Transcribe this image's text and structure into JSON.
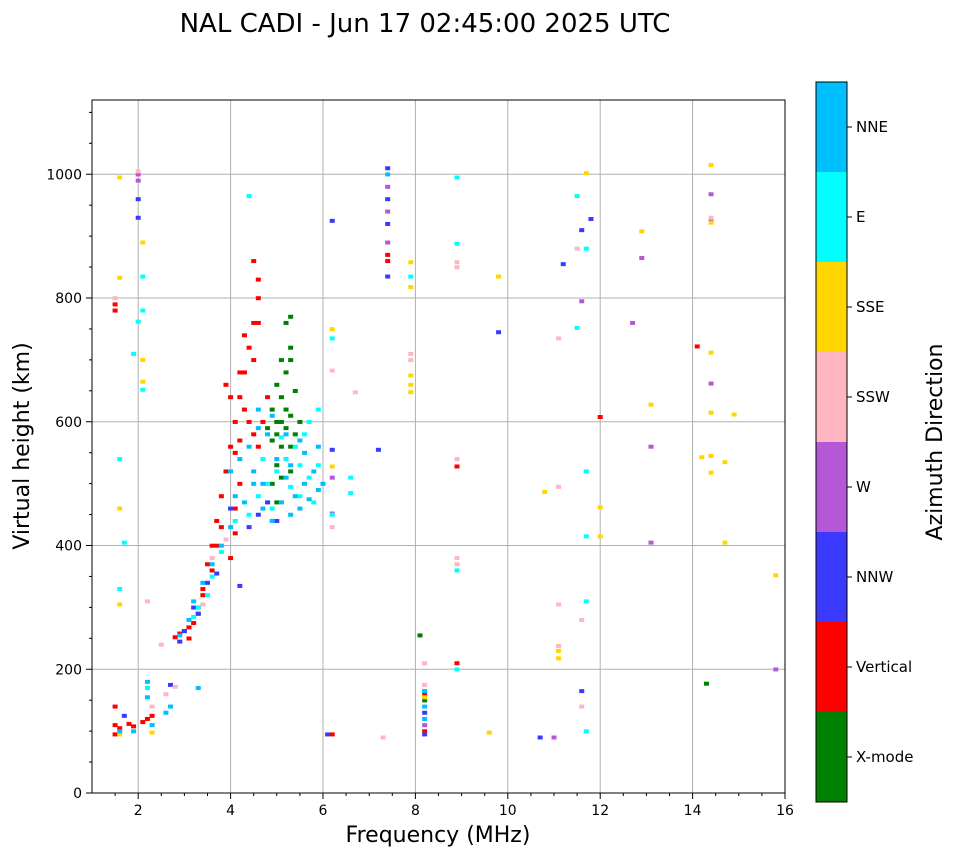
{
  "chart_data": {
    "type": "scatter",
    "title": "NAL CADI - Jun 17 02:45:00 2025 UTC",
    "xlabel": "Frequency (MHz)",
    "ylabel": "Virtual height (km)",
    "xlim": [
      1,
      16
    ],
    "ylim": [
      0,
      1120
    ],
    "xticks": [
      2,
      4,
      6,
      8,
      10,
      12,
      14,
      16
    ],
    "xtick_labels": [
      "2",
      "4",
      "6",
      "8",
      "10",
      "12",
      "14",
      "16"
    ],
    "yticks": [
      0,
      200,
      400,
      600,
      800,
      1000
    ],
    "ytick_labels": [
      "0",
      "200",
      "400",
      "600",
      "800",
      "1000"
    ],
    "grid": true,
    "colorbar": {
      "label": "Azimuth Direction",
      "categories": [
        "X-mode",
        "Vertical",
        "NNW",
        "W",
        "SSW",
        "SSE",
        "E",
        "NNE"
      ],
      "colors": [
        "#008000",
        "#ff0000",
        "#3a3aff",
        "#b658d6",
        "#ffb6c1",
        "#ffd700",
        "#00ffff",
        "#00bfff"
      ]
    },
    "series": [
      {
        "name": "X-mode",
        "points": [
          [
            4.9,
            570
          ],
          [
            5.0,
            600
          ],
          [
            5.1,
            640
          ],
          [
            5.2,
            680
          ],
          [
            5.3,
            720
          ],
          [
            5.0,
            530
          ],
          [
            5.1,
            560
          ],
          [
            5.2,
            590
          ],
          [
            5.3,
            610
          ],
          [
            5.4,
            650
          ],
          [
            5.2,
            760
          ],
          [
            5.3,
            700
          ],
          [
            4.9,
            500
          ],
          [
            5.0,
            470
          ],
          [
            5.1,
            510
          ],
          [
            5.2,
            540
          ],
          [
            4.8,
            590
          ],
          [
            5.0,
            660
          ],
          [
            5.1,
            700
          ],
          [
            5.3,
            770
          ],
          [
            5.4,
            580
          ],
          [
            5.5,
            600
          ],
          [
            5.2,
            620
          ],
          [
            5.1,
            600
          ],
          [
            5.0,
            580
          ],
          [
            4.9,
            620
          ],
          [
            5.3,
            560
          ],
          [
            5.3,
            520
          ],
          [
            8.1,
            255
          ],
          [
            8.2,
            150
          ],
          [
            14.3,
            177
          ]
        ]
      },
      {
        "name": "Vertical",
        "points": [
          [
            1.5,
            140
          ],
          [
            1.5,
            110
          ],
          [
            1.5,
            95
          ],
          [
            1.5,
            790
          ],
          [
            1.5,
            780
          ],
          [
            1.6,
            105
          ],
          [
            1.8,
            112
          ],
          [
            1.9,
            108
          ],
          [
            2.1,
            115
          ],
          [
            2.2,
            120
          ],
          [
            2.3,
            125
          ],
          [
            2.8,
            252
          ],
          [
            2.9,
            258
          ],
          [
            3.0,
            262
          ],
          [
            3.1,
            268
          ],
          [
            3.2,
            275
          ],
          [
            3.3,
            300
          ],
          [
            3.4,
            330
          ],
          [
            3.5,
            370
          ],
          [
            3.6,
            400
          ],
          [
            3.7,
            440
          ],
          [
            3.8,
            480
          ],
          [
            3.9,
            520
          ],
          [
            4.0,
            560
          ],
          [
            4.1,
            600
          ],
          [
            4.2,
            640
          ],
          [
            4.3,
            680
          ],
          [
            4.4,
            720
          ],
          [
            4.5,
            760
          ],
          [
            4.6,
            800
          ],
          [
            4.5,
            860
          ],
          [
            4.6,
            830
          ],
          [
            3.9,
            660
          ],
          [
            4.0,
            640
          ],
          [
            4.3,
            620
          ],
          [
            4.4,
            600
          ],
          [
            4.5,
            580
          ],
          [
            4.6,
            560
          ],
          [
            4.7,
            600
          ],
          [
            4.8,
            640
          ],
          [
            4.1,
            550
          ],
          [
            4.2,
            570
          ],
          [
            3.7,
            400
          ],
          [
            3.8,
            430
          ],
          [
            3.6,
            360
          ],
          [
            3.4,
            320
          ],
          [
            3.3,
            290
          ],
          [
            3.1,
            250
          ],
          [
            4.0,
            380
          ],
          [
            4.1,
            420
          ],
          [
            4.5,
            700
          ],
          [
            4.6,
            760
          ],
          [
            4.3,
            740
          ],
          [
            4.2,
            680
          ],
          [
            7.4,
            870
          ],
          [
            7.4,
            860
          ],
          [
            8.2,
            160
          ],
          [
            8.2,
            100
          ],
          [
            8.9,
            210
          ],
          [
            8.9,
            528
          ],
          [
            12.0,
            608
          ],
          [
            14.1,
            722
          ],
          [
            6.2,
            95
          ],
          [
            4.1,
            460
          ],
          [
            4.2,
            500
          ]
        ]
      },
      {
        "name": "NNW",
        "points": [
          [
            1.7,
            125
          ],
          [
            2.0,
            960
          ],
          [
            2.0,
            930
          ],
          [
            2.7,
            175
          ],
          [
            2.9,
            245
          ],
          [
            3.0,
            262
          ],
          [
            3.2,
            300
          ],
          [
            3.3,
            290
          ],
          [
            3.5,
            340
          ],
          [
            3.7,
            355
          ],
          [
            4.0,
            460
          ],
          [
            4.2,
            335
          ],
          [
            4.4,
            430
          ],
          [
            4.6,
            450
          ],
          [
            4.8,
            470
          ],
          [
            5.0,
            440
          ],
          [
            6.2,
            925
          ],
          [
            6.1,
            95
          ],
          [
            7.4,
            1010
          ],
          [
            7.4,
            960
          ],
          [
            7.4,
            920
          ],
          [
            7.4,
            835
          ],
          [
            8.2,
            130
          ],
          [
            8.2,
            95
          ],
          [
            9.8,
            745
          ],
          [
            10.7,
            90
          ],
          [
            11.2,
            855
          ],
          [
            11.6,
            910
          ],
          [
            11.6,
            165
          ],
          [
            11.8,
            928
          ],
          [
            7.2,
            555
          ],
          [
            6.2,
            555
          ]
        ]
      },
      {
        "name": "W",
        "points": [
          [
            2.0,
            1000
          ],
          [
            2.0,
            990
          ],
          [
            7.4,
            980
          ],
          [
            7.4,
            940
          ],
          [
            7.4,
            890
          ],
          [
            8.2,
            110
          ],
          [
            11.0,
            90
          ],
          [
            11.6,
            795
          ],
          [
            12.7,
            760
          ],
          [
            12.9,
            865
          ],
          [
            13.1,
            560
          ],
          [
            13.1,
            405
          ],
          [
            14.4,
            925
          ],
          [
            14.4,
            968
          ],
          [
            14.4,
            662
          ],
          [
            15.8,
            200
          ],
          [
            6.2,
            510
          ],
          [
            6.2,
            452
          ]
        ]
      },
      {
        "name": "SSW",
        "points": [
          [
            1.5,
            800
          ],
          [
            2.0,
            1005
          ],
          [
            2.2,
            310
          ],
          [
            2.3,
            140
          ],
          [
            2.5,
            240
          ],
          [
            2.6,
            160
          ],
          [
            2.8,
            172
          ],
          [
            3.4,
            305
          ],
          [
            3.6,
            380
          ],
          [
            3.9,
            410
          ],
          [
            6.2,
            430
          ],
          [
            6.2,
            683
          ],
          [
            6.7,
            648
          ],
          [
            7.3,
            90
          ],
          [
            7.9,
            700
          ],
          [
            7.9,
            710
          ],
          [
            8.2,
            210
          ],
          [
            8.2,
            175
          ],
          [
            8.9,
            540
          ],
          [
            8.9,
            380
          ],
          [
            8.9,
            370
          ],
          [
            8.9,
            850
          ],
          [
            8.9,
            858
          ],
          [
            11.1,
            735
          ],
          [
            11.1,
            495
          ],
          [
            11.1,
            305
          ],
          [
            11.1,
            238
          ],
          [
            11.5,
            880
          ],
          [
            11.6,
            280
          ],
          [
            11.6,
            140
          ],
          [
            14.4,
            930
          ]
        ]
      },
      {
        "name": "SSE",
        "points": [
          [
            1.6,
            995
          ],
          [
            1.6,
            833
          ],
          [
            1.6,
            460
          ],
          [
            1.6,
            305
          ],
          [
            1.6,
            95
          ],
          [
            2.1,
            890
          ],
          [
            2.1,
            700
          ],
          [
            2.1,
            665
          ],
          [
            2.3,
            98
          ],
          [
            6.2,
            750
          ],
          [
            6.2,
            528
          ],
          [
            7.9,
            858
          ],
          [
            7.9,
            818
          ],
          [
            7.9,
            675
          ],
          [
            7.9,
            660
          ],
          [
            7.9,
            648
          ],
          [
            8.2,
            155
          ],
          [
            9.6,
            98
          ],
          [
            9.8,
            835
          ],
          [
            10.8,
            487
          ],
          [
            11.1,
            218
          ],
          [
            11.1,
            230
          ],
          [
            11.7,
            1002
          ],
          [
            12.0,
            462
          ],
          [
            12.0,
            415
          ],
          [
            12.9,
            908
          ],
          [
            13.1,
            628
          ],
          [
            14.2,
            543
          ],
          [
            14.4,
            712
          ],
          [
            14.4,
            615
          ],
          [
            14.4,
            545
          ],
          [
            14.4,
            518
          ],
          [
            14.4,
            922
          ],
          [
            14.4,
            1015
          ],
          [
            14.7,
            535
          ],
          [
            14.7,
            405
          ],
          [
            14.9,
            612
          ],
          [
            15.8,
            352
          ]
        ]
      },
      {
        "name": "E",
        "points": [
          [
            1.6,
            540
          ],
          [
            1.6,
            330
          ],
          [
            1.7,
            405
          ],
          [
            1.9,
            710
          ],
          [
            2.0,
            762
          ],
          [
            2.1,
            780
          ],
          [
            2.1,
            835
          ],
          [
            2.1,
            652
          ],
          [
            2.2,
            170
          ],
          [
            3.2,
            285
          ],
          [
            3.3,
            300
          ],
          [
            3.5,
            320
          ],
          [
            3.6,
            350
          ],
          [
            3.8,
            390
          ],
          [
            4.1,
            440
          ],
          [
            4.4,
            965
          ],
          [
            4.4,
            450
          ],
          [
            4.6,
            480
          ],
          [
            4.8,
            500
          ],
          [
            5.0,
            520
          ],
          [
            5.2,
            540
          ],
          [
            5.4,
            560
          ],
          [
            5.6,
            580
          ],
          [
            5.7,
            600
          ],
          [
            5.9,
            620
          ],
          [
            5.5,
            480
          ],
          [
            5.7,
            510
          ],
          [
            5.9,
            530
          ],
          [
            6.2,
            735
          ],
          [
            6.2,
            450
          ],
          [
            6.6,
            510
          ],
          [
            6.6,
            485
          ],
          [
            7.9,
            835
          ],
          [
            8.9,
            888
          ],
          [
            8.9,
            360
          ],
          [
            8.9,
            200
          ],
          [
            8.9,
            995
          ],
          [
            11.5,
            965
          ],
          [
            11.5,
            752
          ],
          [
            11.7,
            880
          ],
          [
            11.7,
            520
          ],
          [
            11.7,
            415
          ],
          [
            11.7,
            310
          ],
          [
            11.7,
            100
          ],
          [
            4.7,
            540
          ],
          [
            5.1,
            575
          ],
          [
            5.3,
            495
          ],
          [
            5.5,
            530
          ],
          [
            4.9,
            460
          ],
          [
            5.8,
            470
          ]
        ]
      },
      {
        "name": "NNE",
        "points": [
          [
            1.6,
            100
          ],
          [
            1.9,
            100
          ],
          [
            2.2,
            155
          ],
          [
            2.2,
            180
          ],
          [
            2.3,
            110
          ],
          [
            2.6,
            130
          ],
          [
            2.7,
            140
          ],
          [
            2.9,
            255
          ],
          [
            3.1,
            280
          ],
          [
            3.2,
            310
          ],
          [
            3.3,
            170
          ],
          [
            3.4,
            340
          ],
          [
            3.6,
            370
          ],
          [
            3.8,
            400
          ],
          [
            4.0,
            430
          ],
          [
            4.0,
            520
          ],
          [
            4.2,
            540
          ],
          [
            4.4,
            560
          ],
          [
            4.5,
            500
          ],
          [
            4.6,
            620
          ],
          [
            4.8,
            580
          ],
          [
            5.0,
            540
          ],
          [
            5.2,
            510
          ],
          [
            5.4,
            480
          ],
          [
            5.6,
            500
          ],
          [
            5.8,
            520
          ],
          [
            5.9,
            560
          ],
          [
            6.0,
            500
          ],
          [
            4.3,
            470
          ],
          [
            4.7,
            460
          ],
          [
            4.9,
            440
          ],
          [
            5.1,
            470
          ],
          [
            5.3,
            450
          ],
          [
            5.5,
            460
          ],
          [
            5.7,
            475
          ],
          [
            5.9,
            490
          ],
          [
            4.5,
            520
          ],
          [
            4.7,
            500
          ],
          [
            5.3,
            530
          ],
          [
            5.6,
            550
          ],
          [
            4.9,
            610
          ],
          [
            5.2,
            580
          ],
          [
            5.5,
            570
          ],
          [
            4.6,
            590
          ],
          [
            4.1,
            480
          ],
          [
            7.4,
            1000
          ],
          [
            8.2,
            140
          ],
          [
            8.2,
            120
          ],
          [
            8.2,
            165
          ]
        ]
      }
    ]
  }
}
